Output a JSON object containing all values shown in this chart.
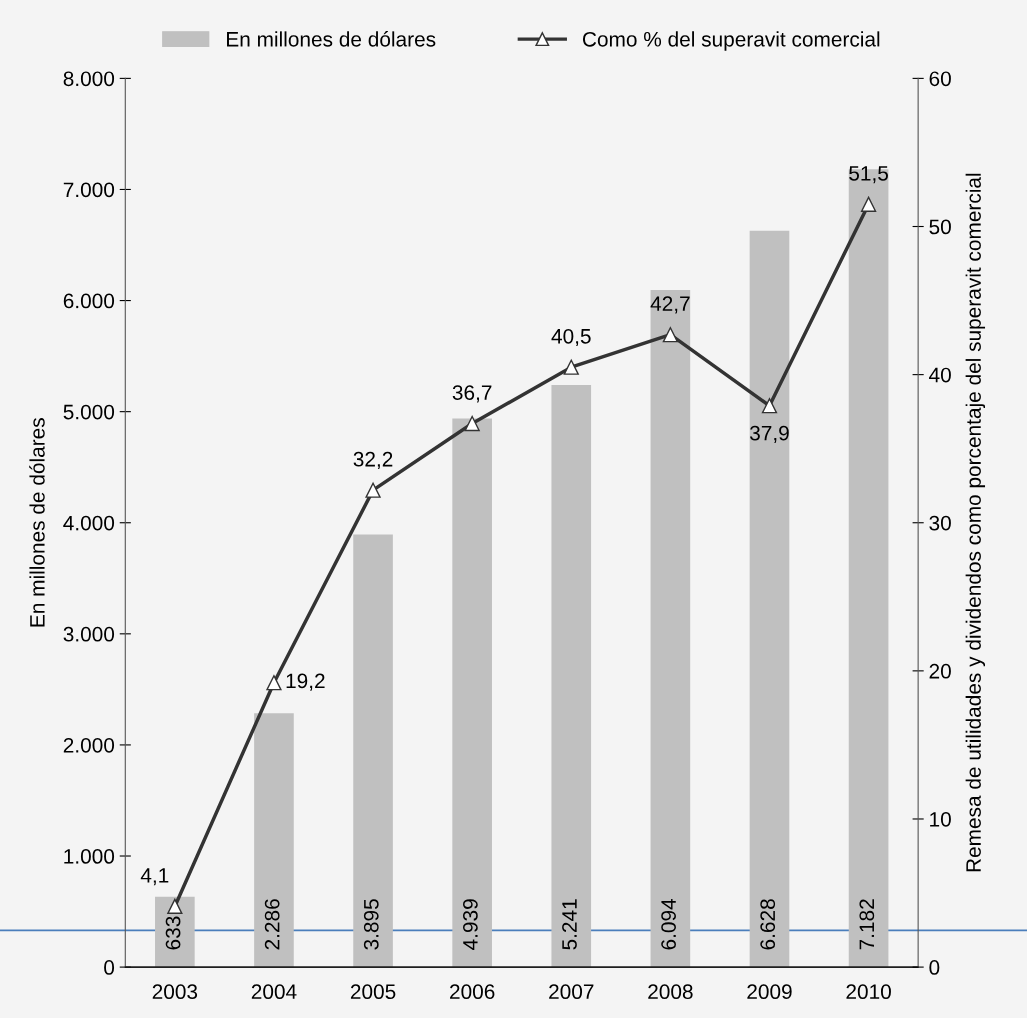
{
  "chart_data": {
    "type": "bar",
    "categories": [
      "2003",
      "2004",
      "2005",
      "2006",
      "2007",
      "2008",
      "2009",
      "2010"
    ],
    "ylabel": "En millones de dólares",
    "y2label": "Remesa de utilidades y dividendos como porcentaje del superavit comercial",
    "ylim": [
      0,
      8000
    ],
    "yticks": [
      {
        "value": 0,
        "label": "0"
      },
      {
        "value": 1000,
        "label": "1.000"
      },
      {
        "value": 2000,
        "label": "2.000"
      },
      {
        "value": 3000,
        "label": "3.000"
      },
      {
        "value": 4000,
        "label": "4.000"
      },
      {
        "value": 5000,
        "label": "5.000"
      },
      {
        "value": 6000,
        "label": "6.000"
      },
      {
        "value": 7000,
        "label": "7.000"
      },
      {
        "value": 8000,
        "label": "8.000"
      }
    ],
    "y2lim": [
      0,
      60
    ],
    "y2ticks": [
      0,
      10,
      20,
      30,
      40,
      50,
      60
    ],
    "series": [
      {
        "name": "En millones de dólares",
        "color": "#c0c0c0",
        "values": [
          633,
          2286,
          3895,
          4939,
          5241,
          6094,
          6628,
          7182
        ],
        "value_labels": [
          "633",
          "2.286",
          "3.895",
          "4.939",
          "5.241",
          "6.094",
          "6.628",
          "7.182"
        ]
      },
      {
        "name": "Como % del superavit comercial",
        "type": "line",
        "axis": "y2",
        "color": "#333333",
        "marker": "triangle",
        "line_style": "solid",
        "values": [
          4.1,
          19.2,
          32.2,
          36.7,
          40.5,
          42.7,
          37.9,
          51.5
        ],
        "value_labels": [
          "4,1",
          "19,2",
          "32,2",
          "36,7",
          "40,5",
          "42,7",
          "37,9",
          "51,5"
        ]
      }
    ],
    "ref_lines": [
      {
        "axis": "y",
        "value": 330,
        "color": "#4a7ebb",
        "line_style": "solid"
      }
    ],
    "legend": "top",
    "grid": false
  }
}
